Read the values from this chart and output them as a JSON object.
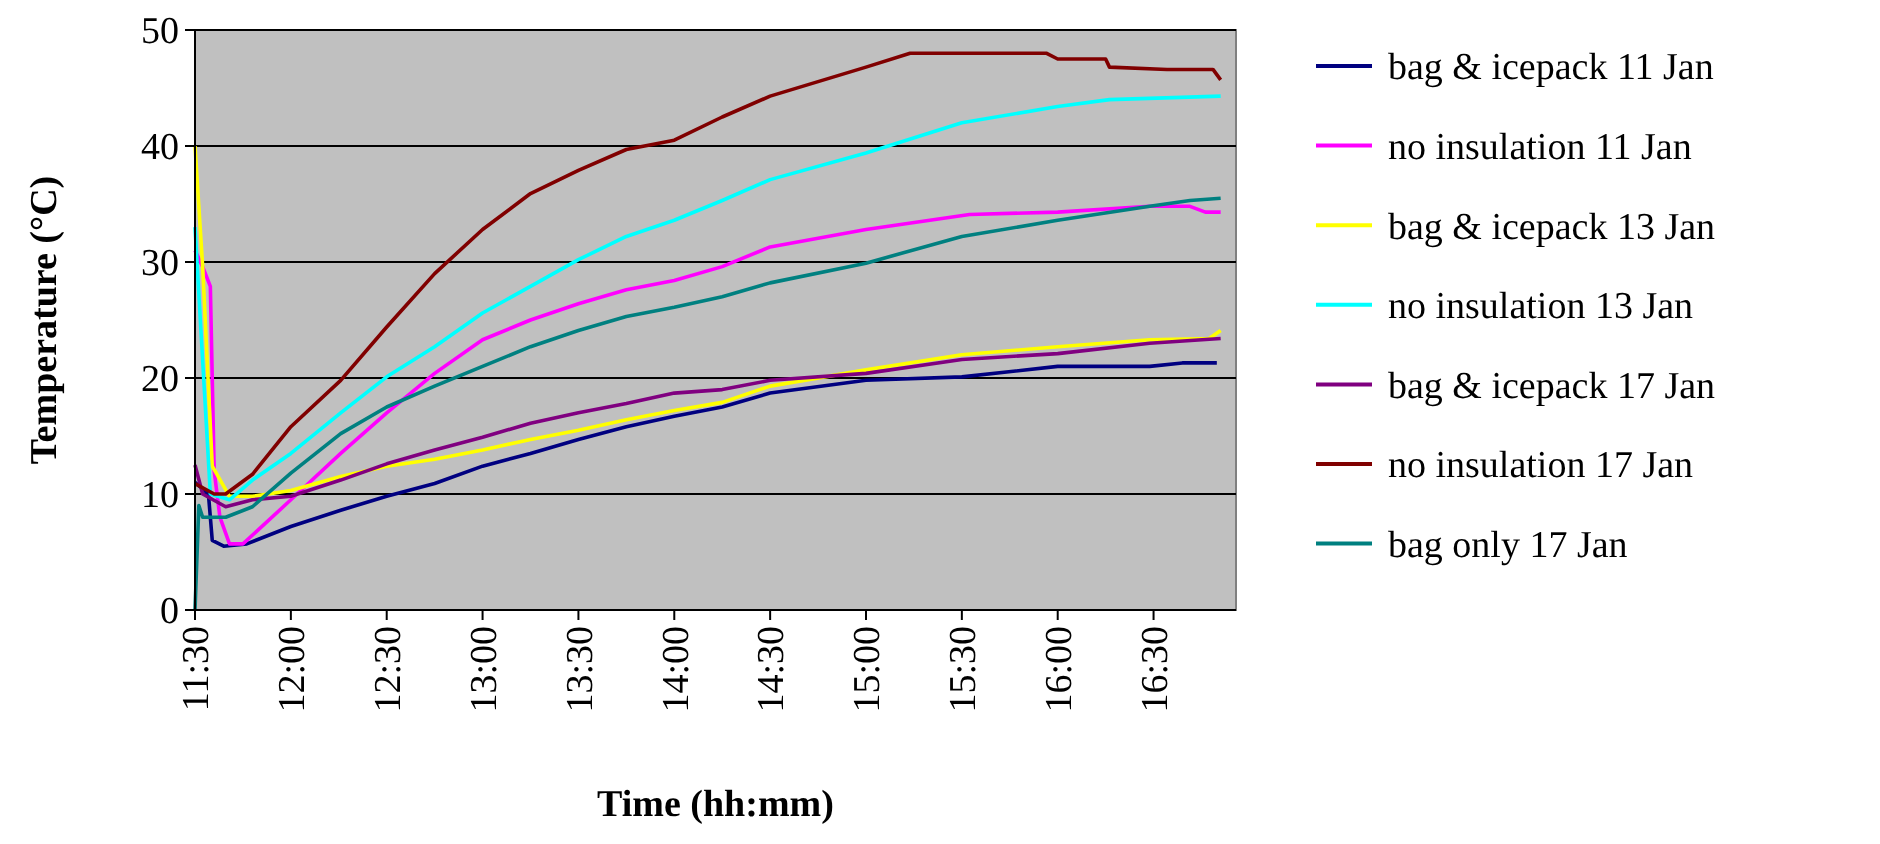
{
  "chart_data": {
    "type": "line",
    "xlabel": "Time (hh:mm)",
    "ylabel": "Temperature (°C)",
    "xlim": [
      11.5,
      16.93
    ],
    "ylim": [
      0,
      50
    ],
    "yticks": [
      0,
      10,
      20,
      30,
      40,
      50
    ],
    "xticks": [
      {
        "value": 11.5,
        "label": "11:30"
      },
      {
        "value": 12,
        "label": "12:00"
      },
      {
        "value": 12.5,
        "label": "12:30"
      },
      {
        "value": 13,
        "label": "13:00"
      },
      {
        "value": 13.5,
        "label": "13:30"
      },
      {
        "value": 14,
        "label": "14:00"
      },
      {
        "value": 14.5,
        "label": "14:30"
      },
      {
        "value": 15,
        "label": "15:00"
      },
      {
        "value": 15.5,
        "label": "15:30"
      },
      {
        "value": 16,
        "label": "16:00"
      },
      {
        "value": 16.5,
        "label": "16:30"
      }
    ],
    "grid": "y",
    "legend": "right",
    "marker": "none",
    "line_style": "solid",
    "series": [
      {
        "name": "bag & icepack 11 Jan",
        "color": "#000080",
        "x": [
          11.5,
          11.57,
          11.59,
          11.65,
          11.77,
          12,
          12.26,
          12.5,
          12.75,
          13,
          13.25,
          13.5,
          13.75,
          14,
          14.25,
          14.5,
          15,
          15.5,
          16,
          16.48,
          16.65,
          16.83
        ],
        "values": [
          11,
          10,
          6,
          5.5,
          5.7,
          7.2,
          8.6,
          9.8,
          10.9,
          12.4,
          13.5,
          14.7,
          15.8,
          16.7,
          17.5,
          18.7,
          19.8,
          20.1,
          21,
          21,
          21.3,
          21.3
        ]
      },
      {
        "name": "no insulation 11 Jan",
        "color": "#ff00ff",
        "x": [
          11.5,
          11.54,
          11.58,
          11.6,
          11.63,
          11.68,
          11.75,
          12,
          12.26,
          12.5,
          12.75,
          13,
          13.25,
          13.5,
          13.75,
          14,
          14.25,
          14.5,
          15,
          15.54,
          16,
          16.48,
          16.69,
          16.77,
          16.85
        ],
        "values": [
          31,
          29.6,
          27.9,
          12,
          8,
          5.7,
          5.7,
          9.5,
          13.5,
          17,
          20.4,
          23.3,
          25,
          26.4,
          27.6,
          28.4,
          29.6,
          31.3,
          32.8,
          34.1,
          34.3,
          34.8,
          34.8,
          34.3,
          34.3
        ]
      },
      {
        "name": "bag & icepack 13 Jan",
        "color": "#ffff00",
        "x": [
          11.5,
          11.54,
          11.59,
          11.68,
          11.8,
          12,
          12.26,
          12.5,
          12.75,
          13,
          13.25,
          13.5,
          13.75,
          14,
          14.25,
          14.5,
          15,
          15.5,
          16,
          16.48,
          16.79,
          16.85
        ],
        "values": [
          40,
          29.6,
          12.4,
          9.8,
          9.8,
          10.3,
          11.5,
          12.4,
          13,
          13.8,
          14.7,
          15.5,
          16.4,
          17.2,
          17.9,
          19.3,
          20.7,
          22,
          22.7,
          23.3,
          23.4,
          24.1
        ]
      },
      {
        "name": "no insulation 13 Jan",
        "color": "#00ffff",
        "x": [
          11.5,
          11.58,
          11.68,
          11.8,
          12,
          12.26,
          12.5,
          12.75,
          13,
          13.25,
          13.5,
          13.75,
          14,
          14.25,
          14.5,
          15,
          15.5,
          16,
          16.27,
          16.85
        ],
        "values": [
          33,
          10,
          9.5,
          11.2,
          13.5,
          17,
          20.1,
          22.7,
          25.6,
          27.9,
          30.2,
          32.2,
          33.6,
          35.3,
          37.1,
          39.4,
          42,
          43.4,
          44,
          44.3
        ]
      },
      {
        "name": "bag & icepack 17 Jan",
        "color": "#800080",
        "x": [
          11.5,
          11.54,
          11.66,
          11.8,
          12,
          12.26,
          12.5,
          12.75,
          13,
          13.25,
          13.5,
          13.75,
          14,
          14.25,
          14.5,
          15,
          15.5,
          16,
          16.48,
          16.85
        ],
        "values": [
          12.5,
          10,
          8.9,
          9.5,
          9.8,
          11.2,
          12.6,
          13.8,
          14.9,
          16.1,
          17,
          17.8,
          18.7,
          19,
          19.8,
          20.4,
          21.6,
          22.1,
          23,
          23.4
        ]
      },
      {
        "name": "no insulation 17 Jan",
        "color": "#800000",
        "x": [
          11.5,
          11.6,
          11.66,
          11.8,
          12,
          12.26,
          12.5,
          12.75,
          13,
          13.25,
          13.5,
          13.75,
          14,
          14.25,
          14.5,
          15,
          15.23,
          15.94,
          16,
          16.25,
          16.27,
          16.57,
          16.81,
          16.85
        ],
        "values": [
          10.9,
          10,
          10,
          11.7,
          15.8,
          19.8,
          24.4,
          29,
          32.8,
          35.9,
          37.9,
          39.7,
          40.5,
          42.5,
          44.3,
          46.8,
          48,
          48,
          47.5,
          47.5,
          46.8,
          46.6,
          46.6,
          45.7
        ]
      },
      {
        "name": "bag only 17 Jan",
        "color": "#008080",
        "x": [
          11.5,
          11.52,
          11.54,
          11.66,
          11.8,
          12,
          12.26,
          12.5,
          12.75,
          13,
          13.25,
          13.5,
          13.75,
          14,
          14.25,
          14.5,
          15,
          15.5,
          16,
          16.48,
          16.69,
          16.85
        ],
        "values": [
          0,
          9,
          8,
          8,
          8.9,
          11.8,
          15.2,
          17.5,
          19.3,
          21,
          22.7,
          24.1,
          25.3,
          26.1,
          27,
          28.2,
          29.9,
          32.2,
          33.6,
          34.8,
          35.3,
          35.5
        ]
      }
    ]
  }
}
